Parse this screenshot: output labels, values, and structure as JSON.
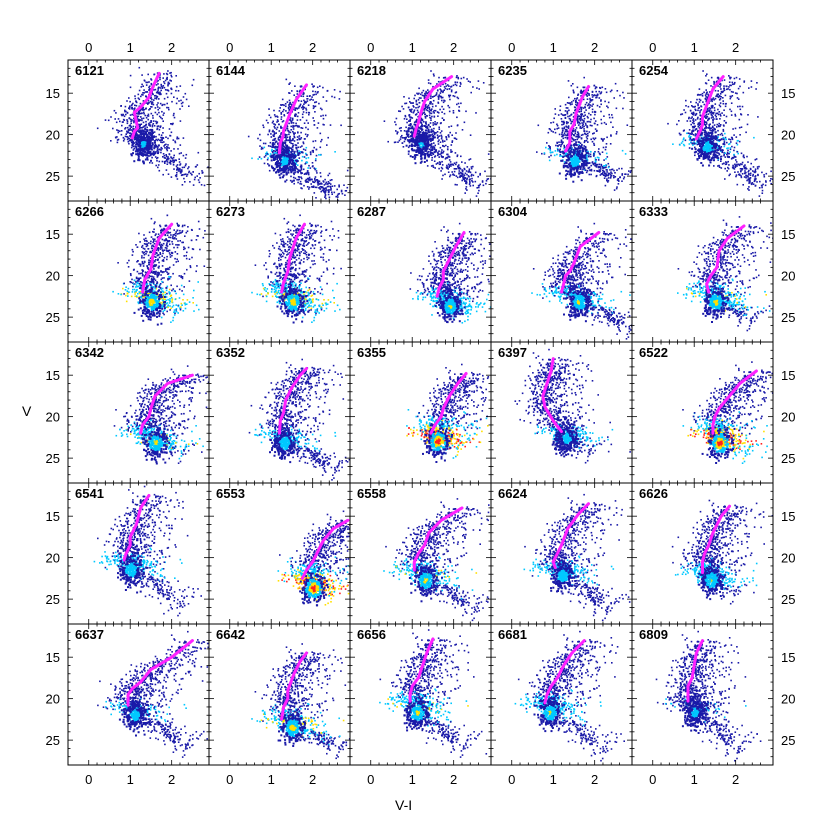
{
  "figure": {
    "xlabel": "V-I",
    "ylabel": "V"
  },
  "chart_data": {
    "type": "scatter",
    "description": "Grid of 25 colour-magnitude density diagrams with a magenta isochrone overlay",
    "xlabel": "V-I",
    "ylabel": "V",
    "xlim": [
      -0.5,
      2.9
    ],
    "ylim": [
      28,
      11
    ],
    "xticks": [
      0,
      1,
      2
    ],
    "xtick_labels": [
      "0",
      "1",
      "2"
    ],
    "yticks": [
      15,
      20,
      25
    ],
    "ytick_labels": [
      "15",
      "20",
      "25"
    ],
    "colors": {
      "isochrone": "#ff22ff",
      "density_low": "#1a1aa8",
      "density_mid": "#00c8ff",
      "density_high": "#ffe000",
      "density_peak": "#ff2020"
    },
    "panels": [
      {
        "label": "6121",
        "iso": [
          [
            1.05,
            20.4
          ],
          [
            1.1,
            19.6
          ],
          [
            1.18,
            19.2
          ],
          [
            1.15,
            18.5
          ],
          [
            1.1,
            17.3
          ],
          [
            1.25,
            16.7
          ],
          [
            1.45,
            15.5
          ],
          [
            1.55,
            14.2
          ],
          [
            1.7,
            12.6
          ]
        ],
        "ms": [
          [
            1.3,
            20.5
          ],
          [
            1.6,
            22
          ],
          [
            2,
            23.5
          ],
          [
            2.5,
            25
          ]
        ],
        "peak": 0.45
      },
      {
        "label": "6144",
        "iso": [
          [
            1.2,
            22.2
          ],
          [
            1.22,
            21
          ],
          [
            1.28,
            20.3
          ],
          [
            1.3,
            19.5
          ],
          [
            1.45,
            17.5
          ],
          [
            1.6,
            15.8
          ],
          [
            1.85,
            14
          ]
        ],
        "ms": [
          [
            1.3,
            22.5
          ],
          [
            1.6,
            24.5
          ],
          [
            2.1,
            26
          ],
          [
            2.5,
            27
          ]
        ],
        "peak": 0.5
      },
      {
        "label": "6218",
        "iso": [
          [
            1.05,
            20.2
          ],
          [
            1.1,
            19.2
          ],
          [
            1.15,
            18.6
          ],
          [
            1.2,
            17.5
          ],
          [
            1.3,
            16
          ],
          [
            1.5,
            14.5
          ],
          [
            1.95,
            13
          ]
        ],
        "ms": [
          [
            1.2,
            20.5
          ],
          [
            1.6,
            22.5
          ],
          [
            2.1,
            24.5
          ],
          [
            2.5,
            26
          ]
        ],
        "peak": 0.45
      },
      {
        "label": "6235",
        "iso": [
          [
            1.3,
            22
          ],
          [
            1.4,
            21
          ],
          [
            1.4,
            19.6
          ],
          [
            1.5,
            18.8
          ],
          [
            1.55,
            17.5
          ],
          [
            1.7,
            15.5
          ],
          [
            1.85,
            14.2
          ]
        ],
        "ms": [
          [
            1.5,
            22.5
          ],
          [
            2,
            24
          ],
          [
            2.5,
            25
          ]
        ],
        "peak": 0.55
      },
      {
        "label": "6254",
        "iso": [
          [
            1.05,
            20.5
          ],
          [
            1.15,
            19.5
          ],
          [
            1.2,
            18.8
          ],
          [
            1.2,
            17.8
          ],
          [
            1.3,
            16.5
          ],
          [
            1.45,
            14.5
          ],
          [
            1.7,
            13
          ]
        ],
        "ms": [
          [
            1.3,
            20.8
          ],
          [
            1.7,
            22.5
          ],
          [
            2.2,
            24.5
          ],
          [
            2.5,
            26
          ]
        ],
        "peak": 0.55
      },
      {
        "label": "6266",
        "iso": [
          [
            1.3,
            22
          ],
          [
            1.35,
            20.5
          ],
          [
            1.5,
            19.2
          ],
          [
            1.55,
            17.5
          ],
          [
            1.7,
            15.5
          ],
          [
            2,
            13.8
          ]
        ],
        "ms": [
          [
            1.5,
            22.5
          ],
          [
            2,
            24
          ]
        ],
        "peak": 0.8
      },
      {
        "label": "6273",
        "iso": [
          [
            1.25,
            22
          ],
          [
            1.3,
            20.8
          ],
          [
            1.4,
            19.5
          ],
          [
            1.45,
            17.8
          ],
          [
            1.6,
            15.5
          ],
          [
            1.8,
            13.8
          ]
        ],
        "ms": [
          [
            1.5,
            22.5
          ],
          [
            2,
            24
          ]
        ],
        "peak": 0.8
      },
      {
        "label": "6287",
        "iso": [
          [
            1.6,
            22.5
          ],
          [
            1.65,
            21.5
          ],
          [
            1.75,
            20.5
          ],
          [
            1.75,
            19.5
          ],
          [
            1.9,
            18
          ],
          [
            2.05,
            16.5
          ],
          [
            2.25,
            14.8
          ]
        ],
        "ms": [
          [
            1.9,
            23
          ],
          [
            2.2,
            24
          ]
        ],
        "peak": 0.7
      },
      {
        "label": "6304",
        "iso": [
          [
            1.2,
            22
          ],
          [
            1.25,
            21
          ],
          [
            1.3,
            20
          ],
          [
            1.4,
            19.5
          ],
          [
            1.5,
            18.5
          ],
          [
            1.65,
            16.5
          ],
          [
            2.1,
            14.8
          ]
        ],
        "ms": [
          [
            1.6,
            22.5
          ],
          [
            2.2,
            24.5
          ],
          [
            2.8,
            26
          ]
        ],
        "peak": 0.7
      },
      {
        "label": "6333",
        "iso": [
          [
            1.35,
            22
          ],
          [
            1.3,
            21
          ],
          [
            1.4,
            20
          ],
          [
            1.55,
            19
          ],
          [
            1.6,
            17
          ],
          [
            1.8,
            15.5
          ],
          [
            2.2,
            14
          ]
        ],
        "ms": [
          [
            1.5,
            22.5
          ],
          [
            1.8,
            23.5
          ],
          [
            2.3,
            25
          ]
        ],
        "peak": 0.75
      },
      {
        "label": "6342",
        "iso": [
          [
            1.25,
            22
          ],
          [
            1.3,
            21
          ],
          [
            1.45,
            20
          ],
          [
            1.5,
            19
          ],
          [
            1.6,
            17.5
          ],
          [
            1.9,
            16
          ],
          [
            2.5,
            15
          ]
        ],
        "ms": [
          [
            1.6,
            22.5
          ],
          [
            2.2,
            24
          ]
        ],
        "peak": 0.75
      },
      {
        "label": "6352",
        "iso": [
          [
            1.2,
            22
          ],
          [
            1.22,
            20.5
          ],
          [
            1.3,
            19.5
          ],
          [
            1.35,
            18
          ],
          [
            1.5,
            16.5
          ],
          [
            1.7,
            15
          ],
          [
            1.85,
            14.2
          ]
        ],
        "ms": [
          [
            1.3,
            22.5
          ],
          [
            1.9,
            24.5
          ],
          [
            2.5,
            26
          ]
        ],
        "peak": 0.6
      },
      {
        "label": "6355",
        "iso": [
          [
            1.45,
            22
          ],
          [
            1.55,
            21
          ],
          [
            1.7,
            20
          ],
          [
            1.75,
            19
          ],
          [
            1.9,
            17.5
          ],
          [
            2.1,
            16
          ],
          [
            2.3,
            14.8
          ]
        ],
        "ms": [
          [
            1.6,
            22.3
          ],
          [
            2,
            23.3
          ]
        ],
        "peak": 1.0
      },
      {
        "label": "6397",
        "iso": [
          [
            1.2,
            21.8
          ],
          [
            1.0,
            20.5
          ],
          [
            0.8,
            18.8
          ],
          [
            0.75,
            17.5
          ],
          [
            0.85,
            16
          ],
          [
            0.95,
            14.5
          ],
          [
            1.0,
            13
          ]
        ],
        "ms": [
          [
            1.3,
            22
          ],
          [
            1.8,
            24
          ]
        ],
        "peak": 0.55
      },
      {
        "label": "6522",
        "iso": [
          [
            1.45,
            22
          ],
          [
            1.45,
            21
          ],
          [
            1.5,
            20
          ],
          [
            1.6,
            19
          ],
          [
            1.85,
            17.5
          ],
          [
            2.1,
            16
          ],
          [
            2.5,
            14.5
          ]
        ],
        "ms": [
          [
            1.6,
            22.5
          ],
          [
            2.2,
            24
          ]
        ],
        "peak": 1.0
      },
      {
        "label": "6541",
        "iso": [
          [
            0.85,
            20.3
          ],
          [
            0.9,
            19.5
          ],
          [
            1.0,
            18.5
          ],
          [
            1.0,
            17.5
          ],
          [
            1.15,
            16
          ],
          [
            1.25,
            14
          ],
          [
            1.45,
            12.5
          ]
        ],
        "ms": [
          [
            1.0,
            20.8
          ],
          [
            1.5,
            23
          ],
          [
            2.2,
            25.5
          ]
        ],
        "peak": 0.65
      },
      {
        "label": "6553",
        "iso": [
          [
            1.75,
            22.5
          ],
          [
            1.85,
            21.5
          ],
          [
            2.0,
            20.5
          ],
          [
            2.1,
            19.5
          ],
          [
            2.25,
            18
          ],
          [
            2.5,
            16.5
          ],
          [
            2.85,
            15.5
          ]
        ],
        "ms": [
          [
            2.0,
            23
          ],
          [
            2.3,
            24
          ]
        ],
        "peak": 1.0
      },
      {
        "label": "6558",
        "iso": [
          [
            1.05,
            21.5
          ],
          [
            1.05,
            20.5
          ],
          [
            1.15,
            19.5
          ],
          [
            1.3,
            18.5
          ],
          [
            1.4,
            17
          ],
          [
            1.7,
            15.5
          ],
          [
            2.2,
            14
          ]
        ],
        "ms": [
          [
            1.3,
            22
          ],
          [
            1.8,
            24
          ],
          [
            2.5,
            26
          ]
        ],
        "peak": 0.75
      },
      {
        "label": "6624",
        "iso": [
          [
            1.05,
            21.2
          ],
          [
            1.0,
            20.5
          ],
          [
            1.1,
            19.5
          ],
          [
            1.2,
            18.5
          ],
          [
            1.35,
            16.5
          ],
          [
            1.6,
            14.8
          ],
          [
            1.85,
            13.5
          ]
        ],
        "ms": [
          [
            1.2,
            21.5
          ],
          [
            1.8,
            24
          ],
          [
            2.2,
            26
          ]
        ],
        "peak": 0.6
      },
      {
        "label": "6626",
        "iso": [
          [
            1.2,
            21.8
          ],
          [
            1.2,
            20.5
          ],
          [
            1.25,
            19.5
          ],
          [
            1.35,
            18.5
          ],
          [
            1.45,
            17
          ],
          [
            1.65,
            15
          ],
          [
            1.85,
            13.8
          ]
        ],
        "ms": [
          [
            1.4,
            22
          ],
          [
            1.9,
            24
          ]
        ],
        "peak": 0.7
      },
      {
        "label": "6637",
        "iso": [
          [
            0.95,
            20.8
          ],
          [
            0.95,
            19.5
          ],
          [
            1.05,
            18.8
          ],
          [
            1.25,
            18
          ],
          [
            1.5,
            16.5
          ],
          [
            2.0,
            15
          ],
          [
            2.5,
            13
          ]
        ],
        "ms": [
          [
            1.1,
            21.3
          ],
          [
            1.7,
            23.5
          ],
          [
            2.3,
            25.5
          ]
        ],
        "peak": 0.55
      },
      {
        "label": "6642",
        "iso": [
          [
            1.25,
            22.5
          ],
          [
            1.3,
            21
          ],
          [
            1.4,
            20
          ],
          [
            1.4,
            19
          ],
          [
            1.55,
            17
          ],
          [
            1.7,
            15.5
          ],
          [
            1.85,
            14.5
          ]
        ],
        "ms": [
          [
            1.5,
            22.8
          ],
          [
            2.0,
            24.5
          ],
          [
            2.6,
            25.5
          ]
        ],
        "peak": 0.8
      },
      {
        "label": "6656",
        "iso": [
          [
            0.95,
            20.3
          ],
          [
            0.95,
            19.5
          ],
          [
            1.0,
            18.5
          ],
          [
            1.15,
            17.5
          ],
          [
            1.25,
            16
          ],
          [
            1.35,
            14.5
          ],
          [
            1.5,
            12.8
          ]
        ],
        "ms": [
          [
            1.1,
            21
          ],
          [
            1.6,
            23.5
          ],
          [
            2.2,
            25.5
          ]
        ],
        "peak": 0.75
      },
      {
        "label": "6681",
        "iso": [
          [
            0.8,
            20.5
          ],
          [
            0.85,
            19.5
          ],
          [
            0.95,
            18.5
          ],
          [
            1.1,
            17.5
          ],
          [
            1.25,
            16
          ],
          [
            1.45,
            14.5
          ],
          [
            1.75,
            13
          ]
        ],
        "ms": [
          [
            0.9,
            21
          ],
          [
            1.5,
            23.5
          ],
          [
            2.2,
            26
          ]
        ],
        "peak": 0.7
      },
      {
        "label": "6809",
        "iso": [
          [
            0.85,
            20.3
          ],
          [
            0.85,
            19.5
          ],
          [
            0.85,
            18.5
          ],
          [
            0.95,
            17.5
          ],
          [
            1.0,
            16
          ],
          [
            1.05,
            14.5
          ],
          [
            1.2,
            13
          ]
        ],
        "ms": [
          [
            1.0,
            21
          ],
          [
            1.5,
            23.5
          ],
          [
            2.0,
            26
          ]
        ],
        "peak": 0.5
      }
    ]
  }
}
